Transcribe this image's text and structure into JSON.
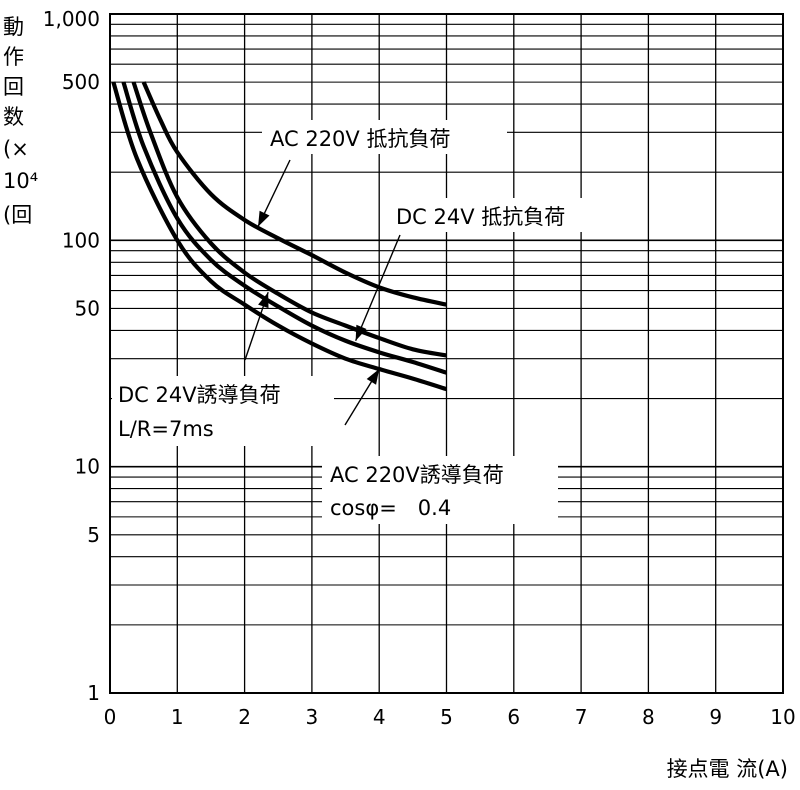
{
  "chart_data": {
    "type": "line",
    "x_scale": "linear",
    "y_scale": "log",
    "xlim": [
      0,
      10
    ],
    "ylim": [
      1,
      1000
    ],
    "grid": true,
    "xlabel": "接点電 流(A)",
    "ylabel_chars": [
      "動",
      "作",
      "回",
      "数",
      "(×",
      "10⁴",
      "(回"
    ],
    "x_ticks": [
      {
        "value": 0,
        "label": "0"
      },
      {
        "value": 1,
        "label": "1"
      },
      {
        "value": 2,
        "label": "2"
      },
      {
        "value": 3,
        "label": "3"
      },
      {
        "value": 4,
        "label": "4"
      },
      {
        "value": 5,
        "label": "5"
      },
      {
        "value": 6,
        "label": "6"
      },
      {
        "value": 7,
        "label": "7"
      },
      {
        "value": 8,
        "label": "8"
      },
      {
        "value": 9,
        "label": "9"
      },
      {
        "value": 10,
        "label": "10"
      }
    ],
    "y_ticks": [
      {
        "value": 1,
        "label": "1"
      },
      {
        "value": 5,
        "label": "5"
      },
      {
        "value": 10,
        "label": "10"
      },
      {
        "value": 50,
        "label": "50"
      },
      {
        "value": 100,
        "label": "100"
      },
      {
        "value": 500,
        "label": "500"
      },
      {
        "value": 1000,
        "label": "1,000"
      }
    ],
    "series": [
      {
        "name": "AC 220V 抵抗負荷",
        "x": [
          0.5,
          0.75,
          1.0,
          1.5,
          2.0,
          2.5,
          3.0,
          3.5,
          4.0,
          4.5,
          5.0
        ],
        "y": [
          500,
          340,
          245,
          160,
          123,
          102,
          86,
          72,
          62,
          56,
          52
        ]
      },
      {
        "name": "DC 24V 抵抗負荷",
        "x": [
          0.35,
          0.6,
          1.0,
          1.5,
          2.0,
          2.5,
          3.0,
          3.5,
          4.0,
          4.5,
          5.0
        ],
        "y": [
          500,
          300,
          155,
          97,
          72,
          58,
          48,
          42,
          37,
          33,
          31
        ]
      },
      {
        "name": "DC 24V誘導負荷",
        "x": [
          0.2,
          0.5,
          1.0,
          1.5,
          2.0,
          2.5,
          3.0,
          3.5,
          4.0,
          4.5,
          5.0
        ],
        "y": [
          500,
          260,
          125,
          82,
          63,
          51,
          42,
          36,
          32,
          29,
          26
        ]
      },
      {
        "name": "AC 220V誘導負荷",
        "x": [
          0.05,
          0.4,
          1.0,
          1.5,
          2.0,
          2.5,
          3.0,
          3.5,
          4.0,
          4.5,
          5.0
        ],
        "y": [
          500,
          230,
          100,
          66,
          52,
          42,
          35,
          30,
          27,
          24.5,
          22
        ]
      }
    ],
    "annotations": [
      {
        "text": "AC 220V 抵抗負荷",
        "target": 0
      },
      {
        "text": "DC 24V 抵抗負荷",
        "target": 1
      },
      {
        "text": "DC 24V誘導負荷",
        "target": 2,
        "line2": "L/R=7ms"
      },
      {
        "text": "AC 220V誘導負荷",
        "target": 3,
        "line2": "cosφ=　0.4"
      }
    ]
  }
}
